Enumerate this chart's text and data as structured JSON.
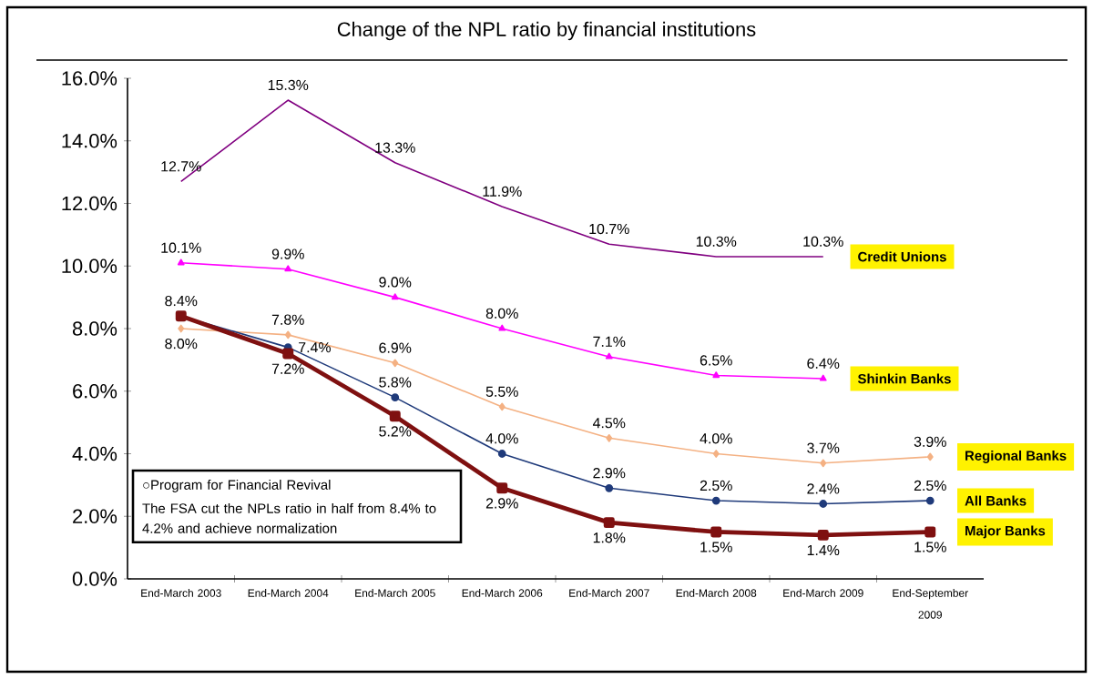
{
  "chart_data": {
    "type": "line",
    "title": "Change of the NPL ratio by financial institutions",
    "categories": [
      "End-March 2003",
      "End-March 2004",
      "End-March 2005",
      "End-March 2006",
      "End-March 2007",
      "End-March 2008",
      "End-March 2009",
      "End-September 2009"
    ],
    "series": [
      {
        "name": "Credit Unions",
        "color": "#800080",
        "marker": "none",
        "values": [
          12.7,
          15.3,
          13.3,
          11.9,
          10.7,
          10.3,
          10.3,
          null
        ],
        "value_labels": [
          "12.7%",
          "15.3%",
          "13.3%",
          "11.9%",
          "10.7%",
          "10.3%",
          "10.3%",
          null
        ]
      },
      {
        "name": "Shinkin Banks",
        "color": "#ff00ff",
        "marker": "triangle",
        "values": [
          10.1,
          9.9,
          9.0,
          8.0,
          7.1,
          6.5,
          6.4,
          null
        ],
        "value_labels": [
          "10.1%",
          "9.9%",
          "9.0%",
          "8.0%",
          "7.1%",
          "6.5%",
          "6.4%",
          null
        ]
      },
      {
        "name": "Regional Banks",
        "color": "#f4b183",
        "marker": "diamond",
        "values": [
          8.0,
          7.8,
          6.9,
          5.5,
          4.5,
          4.0,
          3.7,
          3.9
        ],
        "value_labels": [
          "8.0%",
          "7.8%",
          "6.9%",
          "5.5%",
          "4.5%",
          "4.0%",
          "3.7%",
          "3.9%"
        ]
      },
      {
        "name": "All Banks",
        "color": "#1f3a7a",
        "marker": "circle",
        "values": [
          8.4,
          7.4,
          5.8,
          4.0,
          2.9,
          2.5,
          2.4,
          2.5
        ],
        "value_labels": [
          "8.4%",
          "7.4%",
          "5.8%",
          "4.0%",
          "2.9%",
          "2.5%",
          "2.4%",
          "2.5%"
        ]
      },
      {
        "name": "Major Banks",
        "color": "#7f1010",
        "marker": "square",
        "values": [
          8.4,
          7.2,
          5.2,
          2.9,
          1.8,
          1.5,
          1.4,
          1.5
        ],
        "value_labels": [
          null,
          "7.2%",
          "5.2%",
          "2.9%",
          "1.8%",
          "1.5%",
          "1.4%",
          "1.5%"
        ]
      }
    ],
    "ylim": [
      0,
      16
    ],
    "yticks": [
      {
        "value": 0,
        "label": "0.0%"
      },
      {
        "value": 2,
        "label": "2.0%"
      },
      {
        "value": 4,
        "label": "4.0%"
      },
      {
        "value": 6,
        "label": "6.0%"
      },
      {
        "value": 8,
        "label": "8.0%"
      },
      {
        "value": 10,
        "label": "10.0%"
      },
      {
        "value": 12,
        "label": "12.0%"
      },
      {
        "value": 14,
        "label": "14.0%"
      },
      {
        "value": 16,
        "label": "16.0%"
      }
    ],
    "annotations": [
      "○Program for Financial Revival",
      "The FSA cut the NPLs ratio in half from 8.4% to 4.2% and achieve normalization"
    ]
  }
}
